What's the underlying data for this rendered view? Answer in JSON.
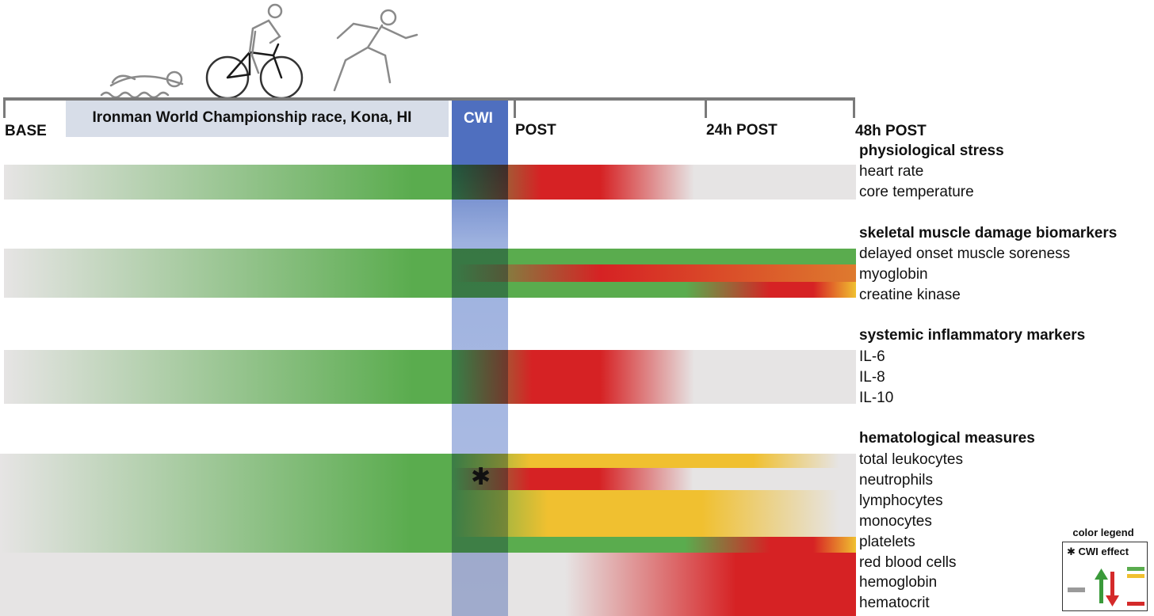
{
  "timeline": {
    "race_label": "Ironman World Championship race, Kona, HI",
    "points": {
      "base": "BASE",
      "cwi": "CWI",
      "post": "POST",
      "post_24h": "24h POST",
      "post_48h": "48h POST"
    }
  },
  "categories": [
    {
      "title": "physiological stress",
      "items": [
        "heart rate",
        "core temperature"
      ]
    },
    {
      "title": "skeletal muscle damage biomarkers",
      "items": [
        "delayed onset muscle soreness",
        "myoglobin",
        "creatine kinase"
      ]
    },
    {
      "title": "systemic inflammatory markers",
      "items": [
        "IL-6",
        "IL-8",
        "IL-10"
      ]
    },
    {
      "title": "hematological measures",
      "items": [
        "total leukocytes",
        "neutrophils",
        "lymphocytes",
        "monocytes",
        "platelets",
        "red blood cells",
        "hemoglobin",
        "hematocrit"
      ]
    }
  ],
  "cwi_effect_marker": "✱",
  "legend": {
    "title": "color legend",
    "cwi_effect": "✱ CWI effect",
    "arrow_up_color": "#3a9a3a",
    "arrow_down_color": "#d42a2a",
    "bar_colors": [
      "#5aac4e",
      "#f0c030",
      "#d42a2a"
    ],
    "neutral_color": "#9a9a9a"
  },
  "colors": {
    "neutral": "#e6e4e4",
    "green": "#5aac4e",
    "red": "#d62224",
    "orange": "#de7a2e",
    "yellow": "#f0c030",
    "cwi_blue": "#4f6fbf"
  }
}
